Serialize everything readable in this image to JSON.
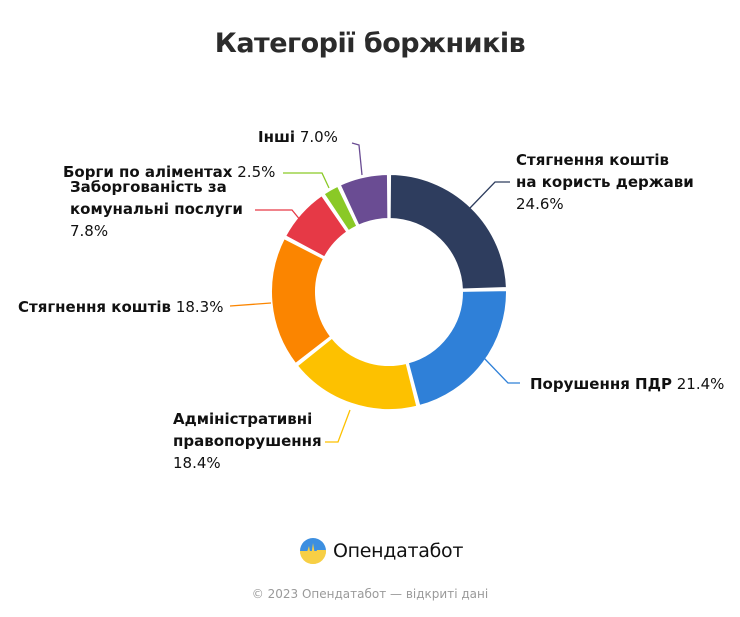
{
  "title": "Категорії боржників",
  "chart_data": {
    "type": "pie",
    "subtype": "donut",
    "title": "Категорії боржників",
    "categories": [
      "Стягнення коштів на користь держави",
      "Порушення ПДР",
      "Адміністративні правопорушення",
      "Стягнення коштів",
      "Заборгованість за комунальні послуги",
      "Борги по аліментах",
      "Інші"
    ],
    "values": [
      24.6,
      21.4,
      18.4,
      18.3,
      7.8,
      2.5,
      7.0
    ],
    "unit": "%",
    "colors": [
      "#2e3d5e",
      "#2f80d8",
      "#fdc100",
      "#fb8500",
      "#e63946",
      "#8ac926",
      "#6a4c93"
    ],
    "legend": "none (external labels with leader lines)"
  },
  "labels": [
    {
      "name": "Стягнення коштів",
      "name2": "на користь держави",
      "pct": "24.6%"
    },
    {
      "name": "Порушення ПДР",
      "pct": "21.4%"
    },
    {
      "name": "Адміністративні",
      "name2": "правопорушення",
      "pct": "18.4%"
    },
    {
      "name": "Стягнення коштів",
      "pct": "18.3%"
    },
    {
      "name": "Заборгованість за",
      "name2": "комунальні послуги",
      "pct": "7.8%"
    },
    {
      "name": "Борги по аліментах",
      "pct": "2.5%"
    },
    {
      "name": "Інші",
      "pct": "7.0%"
    }
  ],
  "brand": {
    "name": "Опендатабот"
  },
  "footer": "© 2023 Опендатабот — відкриті дані"
}
